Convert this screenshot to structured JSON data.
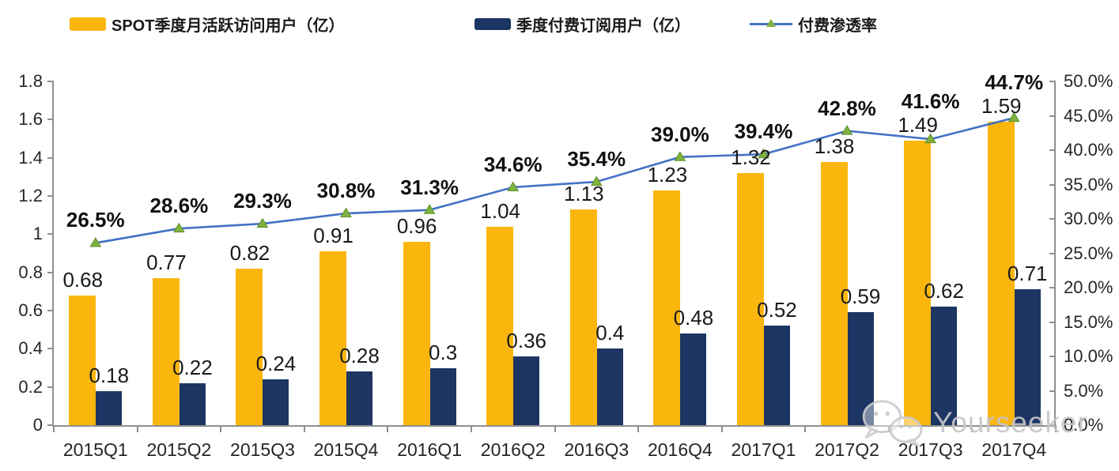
{
  "legend": {
    "items": [
      {
        "label": "SPOT季度月活跃访问用户（亿）",
        "color": "#FBB60D"
      },
      {
        "label": "季度付费订阅用户（亿）",
        "color": "#1C3563"
      },
      {
        "label": "付费渗透率",
        "line_color": "#4472C4",
        "marker_color": "#7EB13F"
      }
    ]
  },
  "chart_data": {
    "type": "bar+line",
    "categories": [
      "2015Q1",
      "2015Q2",
      "2015Q3",
      "2015Q4",
      "2016Q1",
      "2016Q2",
      "2016Q3",
      "2016Q4",
      "2017Q1",
      "2017Q2",
      "2017Q3",
      "2017Q4"
    ],
    "series": [
      {
        "name": "SPOT季度月活跃访问用户（亿）",
        "type": "bar",
        "axis": "left",
        "color": "#FBB60D",
        "values": [
          0.68,
          0.77,
          0.82,
          0.91,
          0.96,
          1.04,
          1.13,
          1.23,
          1.32,
          1.38,
          1.49,
          1.59
        ],
        "labels": [
          "0.68",
          "0.77",
          "0.82",
          "0.91",
          "0.96",
          "1.04",
          "1.13",
          "1.23",
          "1.32",
          "1.38",
          "1.49",
          "1.59"
        ]
      },
      {
        "name": "季度付费订阅用户（亿）",
        "type": "bar",
        "axis": "left",
        "color": "#1C3563",
        "values": [
          0.18,
          0.22,
          0.24,
          0.28,
          0.3,
          0.36,
          0.4,
          0.48,
          0.52,
          0.59,
          0.62,
          0.71
        ],
        "labels": [
          "0.18",
          "0.22",
          "0.24",
          "0.28",
          "0.3",
          "0.36",
          "0.4",
          "0.48",
          "0.52",
          "0.59",
          "0.62",
          "0.71"
        ]
      },
      {
        "name": "付费渗透率",
        "type": "line",
        "axis": "right",
        "color": "#4472C4",
        "marker_color": "#7EB13F",
        "values": [
          26.5,
          28.6,
          29.3,
          30.8,
          31.3,
          34.6,
          35.4,
          39.0,
          39.4,
          42.8,
          41.6,
          44.7
        ],
        "labels": [
          "26.5%",
          "28.6%",
          "29.3%",
          "30.8%",
          "31.3%",
          "34.6%",
          "35.4%",
          "39.0%",
          "39.4%",
          "42.8%",
          "41.6%",
          "44.7%"
        ]
      }
    ],
    "left_axis": {
      "min": 0,
      "max": 1.8,
      "step": 0.2,
      "tick_labels": [
        "0",
        "0.2",
        "0.4",
        "0.6",
        "0.8",
        "1",
        "1.2",
        "1.4",
        "1.6",
        "1.8"
      ]
    },
    "right_axis": {
      "min": 0,
      "max": 50,
      "step": 5,
      "tick_labels": [
        "0.0%",
        "5.0%",
        "10.0%",
        "15.0%",
        "20.0%",
        "25.0%",
        "30.0%",
        "35.0%",
        "40.0%",
        "45.0%",
        "50.0%"
      ]
    },
    "grid": false,
    "legend_position": "top"
  },
  "watermark": {
    "text": "Yourseeker"
  }
}
